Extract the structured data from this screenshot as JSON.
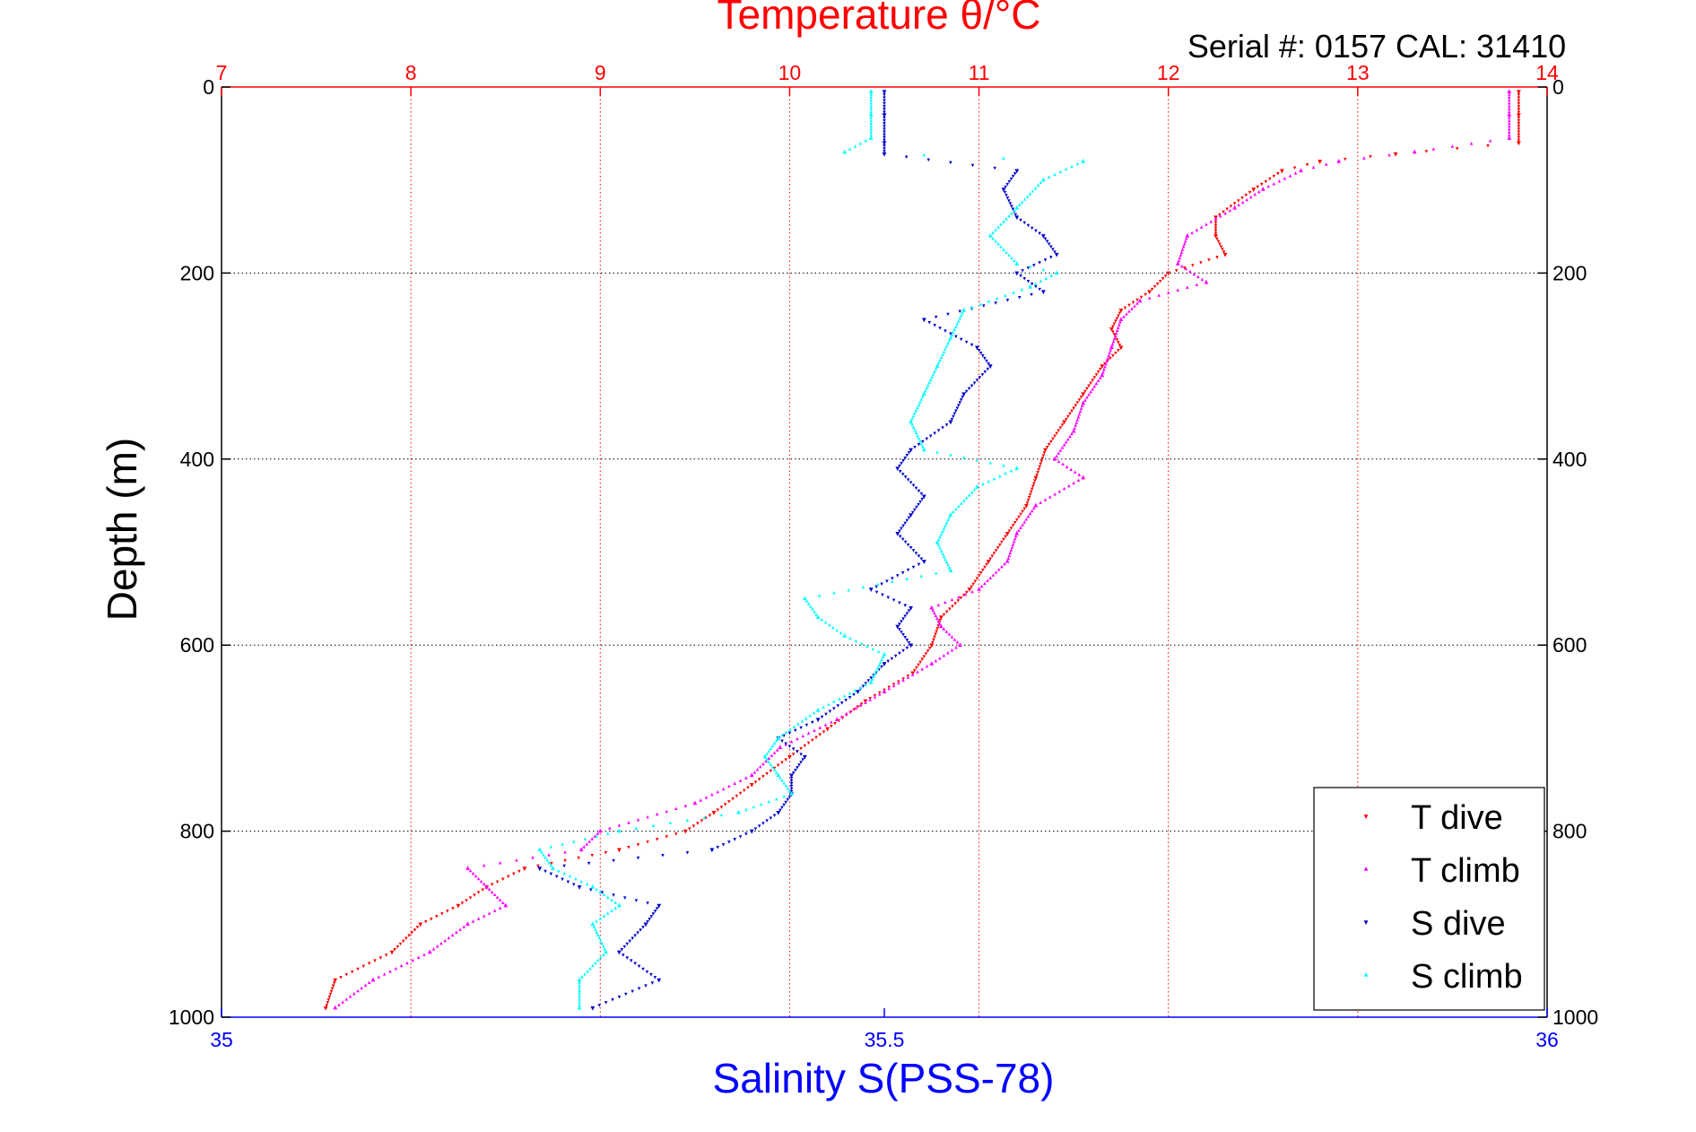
{
  "chart_data": {
    "type": "scatter",
    "title": "Temperature θ/°C",
    "annotation": "Serial #: 0157  CAL: 31410",
    "ylabel": "Depth (m)",
    "xlabel_bottom": "Salinity S(PSS-78)",
    "xlabel_top": "Temperature θ/°C",
    "ylim": [
      0,
      1000
    ],
    "y_inverted": true,
    "x_top_lim": [
      7,
      14
    ],
    "x_bottom_lim": [
      35,
      36
    ],
    "top_ticks": [
      "7",
      "8",
      "9",
      "10",
      "11",
      "12",
      "13",
      "14"
    ],
    "top_tick_values": [
      7,
      8,
      9,
      10,
      11,
      12,
      13,
      14
    ],
    "bottom_ticks": [
      "35",
      "35.5",
      "36"
    ],
    "bottom_tick_values": [
      35,
      35.5,
      36
    ],
    "y_ticks": [
      "0",
      "200",
      "400",
      "600",
      "800",
      "1000"
    ],
    "y_tick_values": [
      0,
      200,
      400,
      600,
      800,
      1000
    ],
    "grid": true,
    "legend_position": "bottom-right",
    "colors": {
      "temperature_axis": "#ff0000",
      "salinity_axis": "#0000ff",
      "t_dive": "#ff0000",
      "t_climb": "#ff00ff",
      "s_dive": "#0000cc",
      "s_climb": "#00ffff"
    },
    "series": [
      {
        "name": "T dive",
        "axis": "temperature",
        "marker": "triangle-down",
        "color": "#ff0000",
        "depth": [
          5,
          30,
          60,
          72,
          80,
          90,
          110,
          140,
          160,
          180,
          200,
          220,
          240,
          260,
          280,
          300,
          330,
          360,
          390,
          420,
          450,
          480,
          510,
          540,
          570,
          600,
          630,
          660,
          690,
          720,
          750,
          780,
          800,
          820,
          840,
          860,
          880,
          900,
          930,
          960,
          990
        ],
        "values": [
          13.85,
          13.85,
          13.85,
          13.2,
          12.8,
          12.6,
          12.45,
          12.25,
          12.25,
          12.3,
          12.0,
          11.9,
          11.75,
          11.7,
          11.75,
          11.65,
          11.55,
          11.45,
          11.35,
          11.3,
          11.25,
          11.15,
          11.05,
          10.95,
          10.8,
          10.75,
          10.65,
          10.4,
          10.2,
          10.0,
          9.8,
          9.6,
          9.45,
          9.1,
          8.6,
          8.4,
          8.25,
          8.05,
          7.9,
          7.6,
          7.55
        ]
      },
      {
        "name": "T climb",
        "axis": "temperature",
        "marker": "triangle-up",
        "color": "#ff00ff",
        "depth": [
          5,
          30,
          55,
          70,
          80,
          90,
          110,
          130,
          160,
          190,
          210,
          230,
          250,
          280,
          310,
          340,
          370,
          400,
          420,
          450,
          480,
          510,
          540,
          560,
          580,
          600,
          620,
          650,
          680,
          710,
          740,
          770,
          800,
          820,
          840,
          860,
          880,
          900,
          930,
          960,
          990
        ],
        "values": [
          13.8,
          13.8,
          13.8,
          13.3,
          12.9,
          12.7,
          12.5,
          12.35,
          12.1,
          12.05,
          12.2,
          11.85,
          11.75,
          11.7,
          11.65,
          11.55,
          11.5,
          11.4,
          11.55,
          11.3,
          11.2,
          11.15,
          11.0,
          10.75,
          10.8,
          10.9,
          10.75,
          10.5,
          10.25,
          9.95,
          9.8,
          9.5,
          9.0,
          8.9,
          8.3,
          8.4,
          8.5,
          8.3,
          8.1,
          7.8,
          7.6
        ]
      },
      {
        "name": "S dive",
        "axis": "salinity",
        "marker": "triangle-down",
        "color": "#0000cc",
        "depth": [
          5,
          30,
          60,
          72,
          90,
          110,
          140,
          160,
          180,
          200,
          220,
          250,
          280,
          300,
          330,
          360,
          390,
          410,
          440,
          460,
          480,
          510,
          540,
          560,
          580,
          600,
          620,
          650,
          680,
          700,
          720,
          740,
          760,
          780,
          800,
          820,
          840,
          860,
          880,
          900,
          930,
          960,
          990
        ],
        "values": [
          35.5,
          35.5,
          35.5,
          35.5,
          35.6,
          35.59,
          35.6,
          35.62,
          35.63,
          35.6,
          35.62,
          35.53,
          35.57,
          35.58,
          35.56,
          35.55,
          35.52,
          35.51,
          35.53,
          35.52,
          35.51,
          35.53,
          35.49,
          35.52,
          35.51,
          35.52,
          35.5,
          35.48,
          35.45,
          35.42,
          35.44,
          35.43,
          35.43,
          35.42,
          35.4,
          35.37,
          35.24,
          35.27,
          35.33,
          35.32,
          35.3,
          35.33,
          35.28
        ]
      },
      {
        "name": "S climb",
        "axis": "salinity",
        "marker": "triangle-up",
        "color": "#00ffff",
        "depth": [
          5,
          30,
          55,
          70,
          80,
          100,
          130,
          160,
          190,
          200,
          215,
          240,
          270,
          300,
          330,
          360,
          390,
          410,
          430,
          460,
          490,
          520,
          550,
          570,
          590,
          610,
          640,
          670,
          700,
          720,
          740,
          760,
          780,
          800,
          820,
          840,
          860,
          880,
          900,
          930,
          960,
          990
        ],
        "values": [
          35.49,
          35.49,
          35.49,
          35.47,
          35.65,
          35.62,
          35.6,
          35.58,
          35.6,
          35.63,
          35.61,
          35.56,
          35.55,
          35.54,
          35.53,
          35.52,
          35.53,
          35.6,
          35.57,
          35.55,
          35.54,
          35.55,
          35.44,
          35.45,
          35.47,
          35.5,
          35.49,
          35.45,
          35.42,
          35.41,
          35.42,
          35.43,
          35.39,
          35.3,
          35.24,
          35.25,
          35.28,
          35.3,
          35.28,
          35.29,
          35.27,
          35.27
        ]
      }
    ]
  }
}
